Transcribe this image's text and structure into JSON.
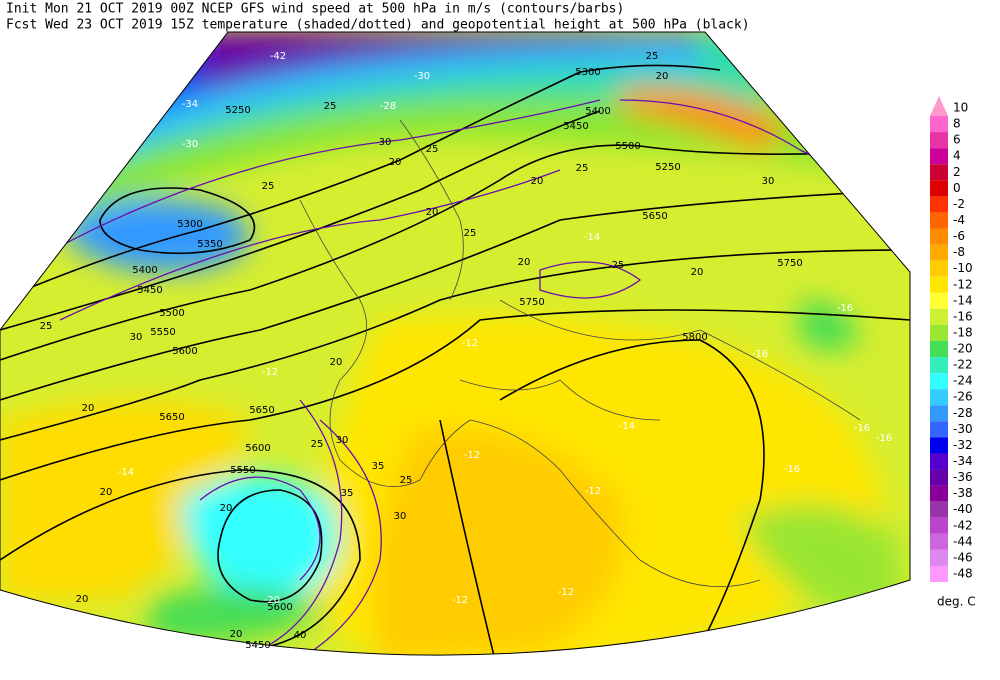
{
  "header": {
    "line1": "Init   Mon 21 OCT 2019 00Z  NCEP GFS wind speed at 500 hPa in m/s (contours/barbs)",
    "line2": "Fcst Wed 23 OCT 2019 15Z  temperature (shaded/dotted) and geopotential height at 500 hPa (black)"
  },
  "colorbar": {
    "levels": [
      10,
      8,
      6,
      4,
      2,
      0,
      -2,
      -4,
      -6,
      -8,
      -10,
      -12,
      -14,
      -16,
      -18,
      -20,
      -22,
      -24,
      -26,
      -28,
      -30,
      -32,
      -34,
      -36,
      -38,
      -40,
      -42,
      -44,
      -46,
      -48
    ],
    "colors": [
      "#ff99cc",
      "#ff66cc",
      "#e633a6",
      "#cc0099",
      "#cc0033",
      "#dd0000",
      "#ff3300",
      "#ff6600",
      "#ff8c00",
      "#ffaa00",
      "#ffcc00",
      "#ffe600",
      "#ffff33",
      "#ccf033",
      "#99e633",
      "#44dd55",
      "#33eebb",
      "#33ffff",
      "#33ccff",
      "#3399ff",
      "#3366ff",
      "#0000ee",
      "#5500cc",
      "#6600aa",
      "#880099",
      "#9933aa",
      "#bb44cc",
      "#cc66dd",
      "#dd88ee",
      "#ff99ff"
    ],
    "unit": "deg. C"
  },
  "map_labels": {
    "heights": [
      "5300",
      "5400",
      "5450",
      "5500",
      "5250",
      "5650",
      "5750",
      "5750",
      "5800",
      "5650",
      "5650",
      "5600",
      "5550",
      "5600",
      "5300",
      "5350",
      "5400",
      "5450",
      "5500",
      "5550",
      "5600",
      "5250",
      "5450"
    ],
    "wind": [
      "25",
      "20",
      "25",
      "30",
      "20",
      "25",
      "20",
      "25",
      "20",
      "25",
      "20",
      "25",
      "20",
      "25",
      "30",
      "25",
      "20",
      "20",
      "25",
      "30",
      "35",
      "35",
      "25",
      "30",
      "20",
      "40",
      "20",
      "20",
      "30",
      "20"
    ],
    "temperature": [
      "-42",
      "-34",
      "-30",
      "-30",
      "-28",
      "-16",
      "-14",
      "-12",
      "-12",
      "-12",
      "-14",
      "-16",
      "-16",
      "-16",
      "-12",
      "-12",
      "-14",
      "-20",
      "-16",
      "-12"
    ]
  }
}
